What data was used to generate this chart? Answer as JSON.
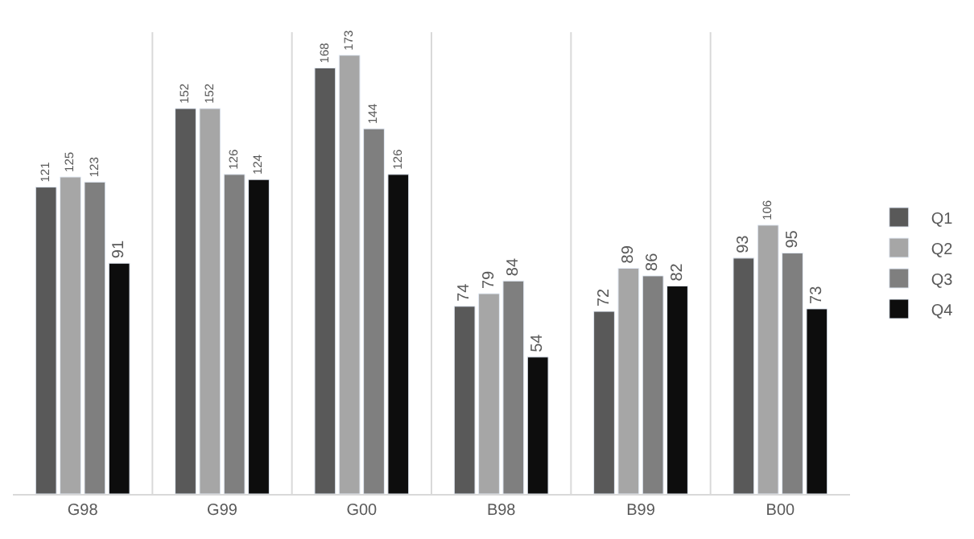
{
  "chart_data": {
    "type": "bar",
    "categories": [
      "G98",
      "G99",
      "G00",
      "B98",
      "B99",
      "B00"
    ],
    "series": [
      {
        "name": "Q1",
        "color": "#595959",
        "values": [
          121,
          152,
          168,
          74,
          72,
          93
        ]
      },
      {
        "name": "Q2",
        "color": "#a6a6a6",
        "values": [
          125,
          152,
          173,
          79,
          89,
          106
        ]
      },
      {
        "name": "Q3",
        "color": "#7f7f7f",
        "values": [
          123,
          126,
          144,
          84,
          86,
          95
        ]
      },
      {
        "name": "Q4",
        "color": "#0d0d0d",
        "values": [
          91,
          124,
          126,
          54,
          82,
          73
        ]
      }
    ],
    "data_labels": true,
    "grid": "x",
    "legend": "right",
    "tick_labels": "x"
  }
}
